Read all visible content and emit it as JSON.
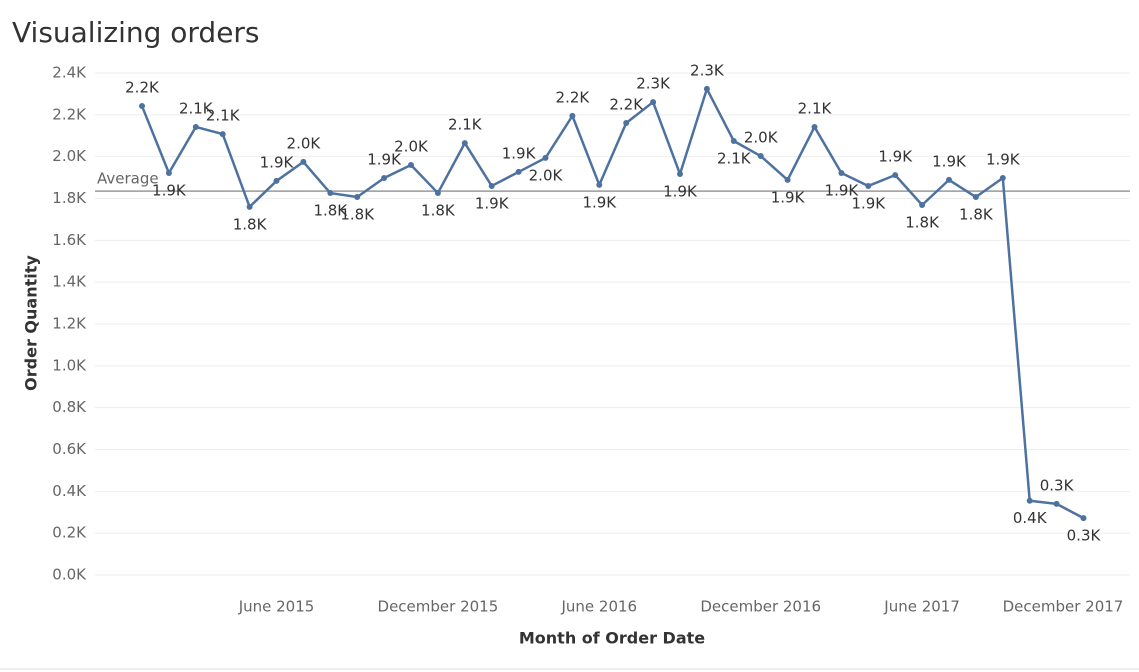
{
  "chart_data": {
    "type": "line",
    "title": "Visualizing orders",
    "x_label": "Month of Order Date",
    "y_label": "Order Quantity",
    "categories": [
      "January 2015",
      "February 2015",
      "March 2015",
      "April 2015",
      "May 2015",
      "June 2015",
      "July 2015",
      "August 2015",
      "September 2015",
      "October 2015",
      "November 2015",
      "December 2015",
      "January 2016",
      "February 2016",
      "March 2016",
      "April 2016",
      "May 2016",
      "June 2016",
      "July 2016",
      "August 2016",
      "September 2016",
      "October 2016",
      "November 2016",
      "December 2016",
      "January 2017",
      "February 2017",
      "March 2017",
      "April 2017",
      "May 2017",
      "June 2017",
      "July 2017",
      "August 2017",
      "September 2017",
      "October 2017",
      "November 2017",
      "December 2017"
    ],
    "series": [
      {
        "name": "Order Quantity",
        "color": "#4e72a0",
        "values": [
          2242,
          1922,
          2142,
          2108,
          1760,
          1884,
          1975,
          1826,
          1807,
          1898,
          1960,
          1826,
          2065,
          1860,
          1927,
          1994,
          2195,
          1865,
          2161,
          2261,
          1917,
          2324,
          2075,
          2003,
          1889,
          2142,
          1922,
          1860,
          1912,
          1769,
          1889,
          1807,
          1898,
          355,
          340,
          272
        ],
        "value_labels": [
          "2.2K",
          "1.9K",
          "2.1K",
          "2.1K",
          "1.8K",
          "1.9K",
          "2.0K",
          "1.8K",
          "1.8K",
          "1.9K",
          "2.0K",
          "1.8K",
          "2.1K",
          "1.9K",
          "1.9K",
          "2.0K",
          "2.2K",
          "1.9K",
          "2.2K",
          "2.3K",
          "1.9K",
          "2.3K",
          "2.1K",
          "2.0K",
          "1.9K",
          "2.1K",
          "1.9K",
          "1.9K",
          "1.9K",
          "1.8K",
          "1.9K",
          "1.8K",
          "1.9K",
          "0.4K",
          "0.3K",
          "0.3K"
        ]
      }
    ],
    "xticks": [
      "June 2015",
      "December 2015",
      "June 2016",
      "December 2016",
      "June 2017",
      "December 2017"
    ],
    "ylim": [
      0,
      2400
    ],
    "yticks": [
      {
        "value": 0,
        "label": "0.0K"
      },
      {
        "value": 200,
        "label": "0.2K"
      },
      {
        "value": 400,
        "label": "0.4K"
      },
      {
        "value": 600,
        "label": "0.6K"
      },
      {
        "value": 800,
        "label": "0.8K"
      },
      {
        "value": 1000,
        "label": "1.0K"
      },
      {
        "value": 1200,
        "label": "1.2K"
      },
      {
        "value": 1400,
        "label": "1.4K"
      },
      {
        "value": 1600,
        "label": "1.6K"
      },
      {
        "value": 1800,
        "label": "1.8K"
      },
      {
        "value": 2000,
        "label": "2.0K"
      },
      {
        "value": 2200,
        "label": "2.2K"
      },
      {
        "value": 2400,
        "label": "2.4K"
      }
    ],
    "grid": true,
    "reference_line": {
      "label": "Average",
      "value": 1835
    }
  }
}
